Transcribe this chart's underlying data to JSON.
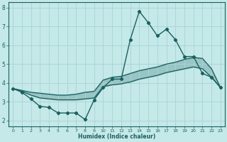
{
  "xlabel": "Humidex (Indice chaleur)",
  "background_color": "#c5e8e8",
  "grid_color": "#a8d4d4",
  "line_color": "#1a6060",
  "x": [
    0,
    1,
    2,
    3,
    4,
    5,
    6,
    7,
    8,
    9,
    10,
    11,
    12,
    13,
    14,
    15,
    16,
    17,
    18,
    19,
    20,
    21,
    22,
    23
  ],
  "line_jagged": [
    3.7,
    3.5,
    3.15,
    2.75,
    2.7,
    2.4,
    2.4,
    2.4,
    2.05,
    3.1,
    3.75,
    4.2,
    4.2,
    6.3,
    7.8,
    7.2,
    6.5,
    6.85,
    6.3,
    5.4,
    5.4,
    4.5,
    4.3,
    3.75
  ],
  "line_upper": [
    3.7,
    3.6,
    3.5,
    3.45,
    3.4,
    3.35,
    3.35,
    3.4,
    3.5,
    3.55,
    4.15,
    4.3,
    4.35,
    4.5,
    4.65,
    4.75,
    4.85,
    5.0,
    5.1,
    5.25,
    5.35,
    5.3,
    4.75,
    3.75
  ],
  "line_lower": [
    3.7,
    3.55,
    3.35,
    3.2,
    3.15,
    3.1,
    3.1,
    3.1,
    3.15,
    3.2,
    3.8,
    3.9,
    3.95,
    4.05,
    4.2,
    4.3,
    4.4,
    4.55,
    4.65,
    4.75,
    4.85,
    4.75,
    4.3,
    3.75
  ],
  "ylim": [
    1.7,
    8.3
  ],
  "xlim": [
    -0.5,
    23.5
  ],
  "yticks": [
    2,
    3,
    4,
    5,
    6,
    7,
    8
  ],
  "xticks": [
    0,
    1,
    2,
    3,
    4,
    5,
    6,
    7,
    8,
    9,
    10,
    11,
    12,
    13,
    14,
    15,
    16,
    17,
    18,
    19,
    20,
    21,
    22,
    23
  ]
}
